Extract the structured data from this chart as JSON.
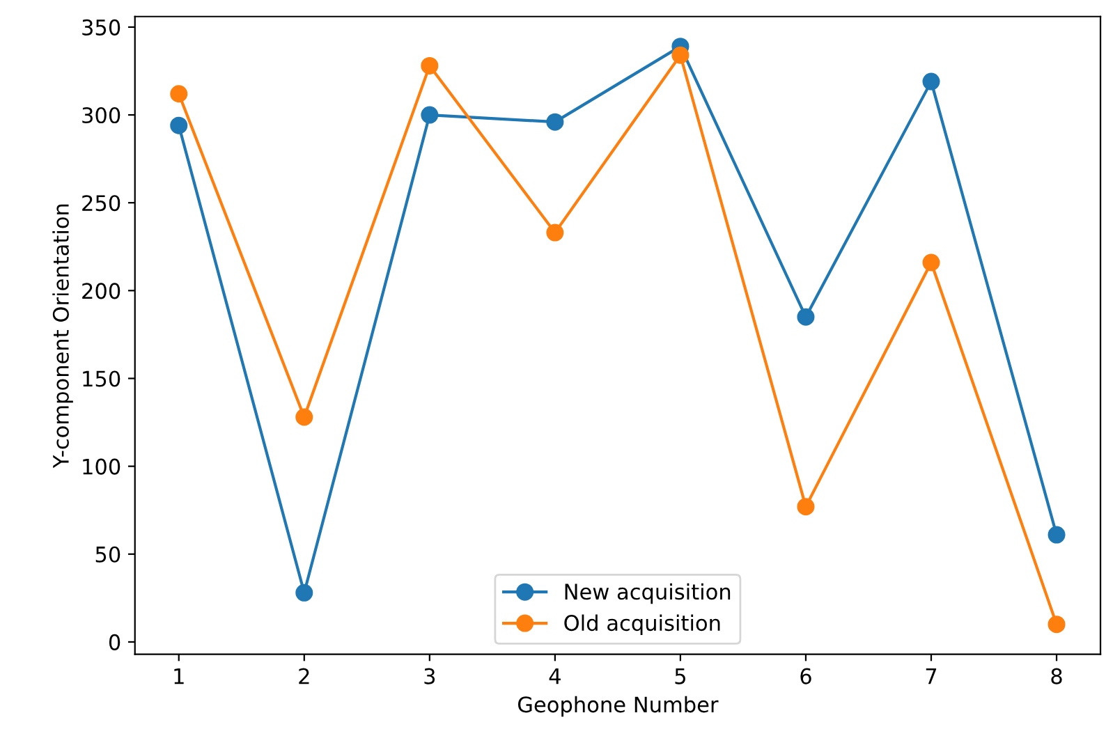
{
  "chart_data": {
    "type": "line",
    "xlabel": "Geophone Number",
    "ylabel": "Y-component Orientation",
    "x": [
      1,
      2,
      3,
      4,
      5,
      6,
      7,
      8
    ],
    "series": [
      {
        "name": "New acquisition",
        "color": "#1f77b4",
        "values": [
          294,
          28,
          300,
          296,
          339,
          185,
          319,
          61
        ]
      },
      {
        "name": "Old acquisition",
        "color": "#ff7f0e",
        "values": [
          312,
          128,
          328,
          233,
          334,
          77,
          216,
          10
        ]
      }
    ],
    "xlim": [
      0.65,
      8.35
    ],
    "xticks": [
      1,
      2,
      3,
      4,
      5,
      6,
      7,
      8
    ],
    "ylim": [
      -7,
      356
    ],
    "yticks": [
      0,
      50,
      100,
      150,
      200,
      250,
      300,
      350
    ],
    "marker": "circle",
    "line_style": "solid",
    "legend": "bottom",
    "grid": false
  }
}
